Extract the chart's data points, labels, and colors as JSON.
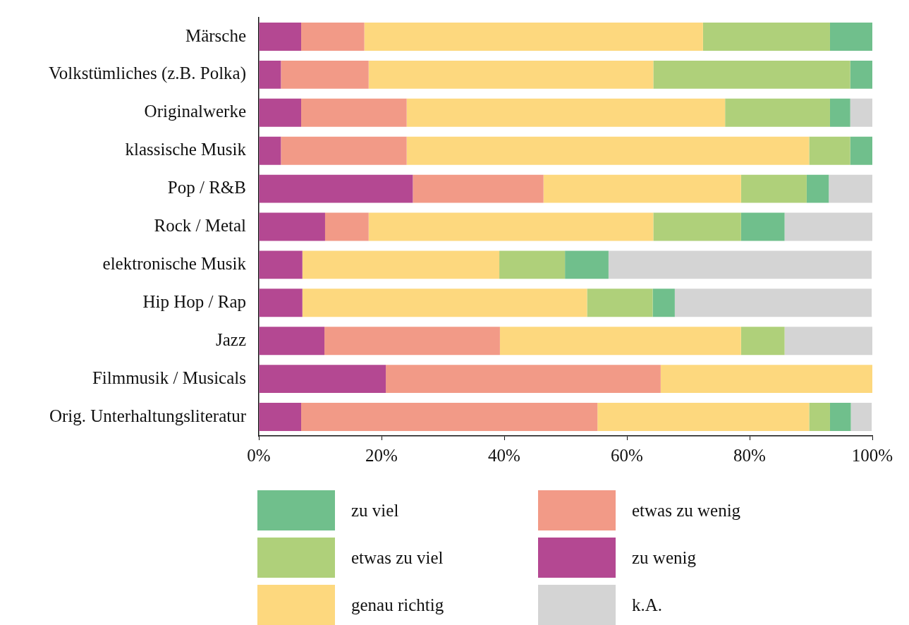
{
  "chart_data": {
    "type": "bar",
    "orientation": "horizontal",
    "stacked": true,
    "grid": false,
    "legend": "bottom",
    "categories": [
      "Märsche",
      "Volkstümliches (z.B. Polka)",
      "Originalwerke",
      "klassische Musik",
      "Pop / R&B",
      "Rock / Metal",
      "elektronische Musik",
      "Hip Hop / Rap",
      "Jazz",
      "Filmmusik / Musicals",
      "Orig. Unterhaltungsliteratur"
    ],
    "xlim": [
      0,
      100
    ],
    "xticks": [
      {
        "value": 0,
        "label": "0%"
      },
      {
        "value": 20,
        "label": "20%"
      },
      {
        "value": 40,
        "label": "40%"
      },
      {
        "value": 60,
        "label": "60%"
      },
      {
        "value": 80,
        "label": "80%"
      },
      {
        "value": 100,
        "label": "100%"
      }
    ],
    "series": [
      {
        "name": "zu wenig",
        "color": "#b44892",
        "values": [
          6.9,
          3.6,
          6.9,
          3.6,
          25.1,
          10.8,
          7.1,
          7.1,
          10.7,
          20.7,
          6.9
        ]
      },
      {
        "name": "etwas zu wenig",
        "color": "#f29a87",
        "values": [
          10.3,
          14.3,
          17.2,
          20.5,
          21.3,
          7.1,
          0,
          0,
          28.6,
          44.8,
          48.3
        ]
      },
      {
        "name": "genau richtig",
        "color": "#fdd87e",
        "values": [
          55.2,
          46.4,
          51.9,
          65.6,
          32.2,
          46.4,
          32.1,
          46.4,
          39.3,
          34.5,
          34.5
        ]
      },
      {
        "name": "etwas zu viel",
        "color": "#afd07a",
        "values": [
          20.7,
          32.1,
          17.1,
          6.7,
          10.7,
          14.3,
          10.7,
          10.7,
          7.1,
          0,
          3.4
        ]
      },
      {
        "name": "zu viel",
        "color": "#70bf8c",
        "values": [
          6.9,
          3.6,
          3.3,
          3.6,
          3.6,
          7.1,
          7.1,
          3.6,
          0,
          0,
          3.4
        ]
      },
      {
        "name": "k.A.",
        "color": "#d4d4d4",
        "values": [
          0,
          0,
          3.6,
          0,
          7.1,
          14.3,
          42.9,
          32.1,
          14.3,
          0,
          3.4
        ]
      }
    ]
  }
}
